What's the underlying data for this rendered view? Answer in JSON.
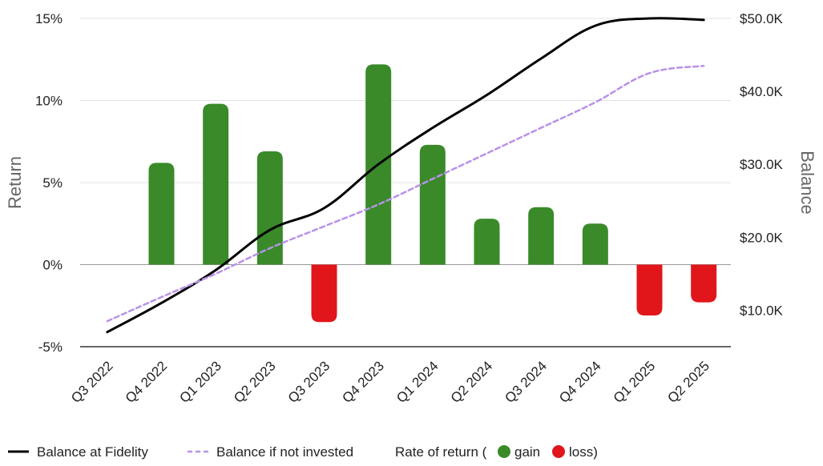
{
  "chart_data": {
    "type": "bar",
    "categories": [
      "Q3 2022",
      "Q4 2022",
      "Q1 2023",
      "Q2 2023",
      "Q3 2023",
      "Q4 2023",
      "Q1 2024",
      "Q2 2024",
      "Q3 2024",
      "Q4 2024",
      "Q1 2025",
      "Q2 2025"
    ],
    "ylabel": "Return",
    "y2label": "Balance",
    "ylim": [
      -5,
      15
    ],
    "y2lim": [
      5000,
      50000
    ],
    "yticks": [
      "15%",
      "10%",
      "5%",
      "0%",
      "-5%"
    ],
    "yticks_values": [
      15,
      10,
      5,
      0,
      -5
    ],
    "y2ticks": [
      "$50.0K",
      "$40.0K",
      "$30.0K",
      "$20.0K",
      "$10.0K"
    ],
    "y2ticks_values": [
      50000,
      40000,
      30000,
      20000,
      10000
    ],
    "grid": true,
    "legend_position": "bottom",
    "series": [
      {
        "name": "Rate of return",
        "axis": "left",
        "kind": "bar",
        "values": [
          0,
          6.2,
          9.8,
          6.9,
          -3.5,
          12.2,
          7.3,
          2.8,
          3.5,
          2.5,
          -3.1,
          -2.3
        ]
      },
      {
        "name": "Balance at Fidelity",
        "axis": "right",
        "kind": "line",
        "values": [
          7000,
          11000,
          15500,
          21000,
          24000,
          30000,
          35000,
          39500,
          44500,
          49000,
          50000,
          49800
        ]
      },
      {
        "name": "Balance if not invested",
        "axis": "right",
        "kind": "line-dashed",
        "values": [
          8500,
          11800,
          15000,
          18500,
          21500,
          24500,
          28000,
          31500,
          35000,
          38500,
          42500,
          43500
        ]
      }
    ],
    "legend": {
      "balance_label": "Balance at Fidelity",
      "noninvest_label": "Balance if not invested",
      "rate_prefix": "Rate of return (",
      "gain_label": "gain",
      "loss_label": "loss)"
    },
    "colors": {
      "gain": "#3a8a2a",
      "loss": "#e0161b",
      "balance": "#000000",
      "noninvest": "#b892e8",
      "grid": "#e3e3e3",
      "zero": "#999999",
      "axis": "#333333"
    }
  }
}
